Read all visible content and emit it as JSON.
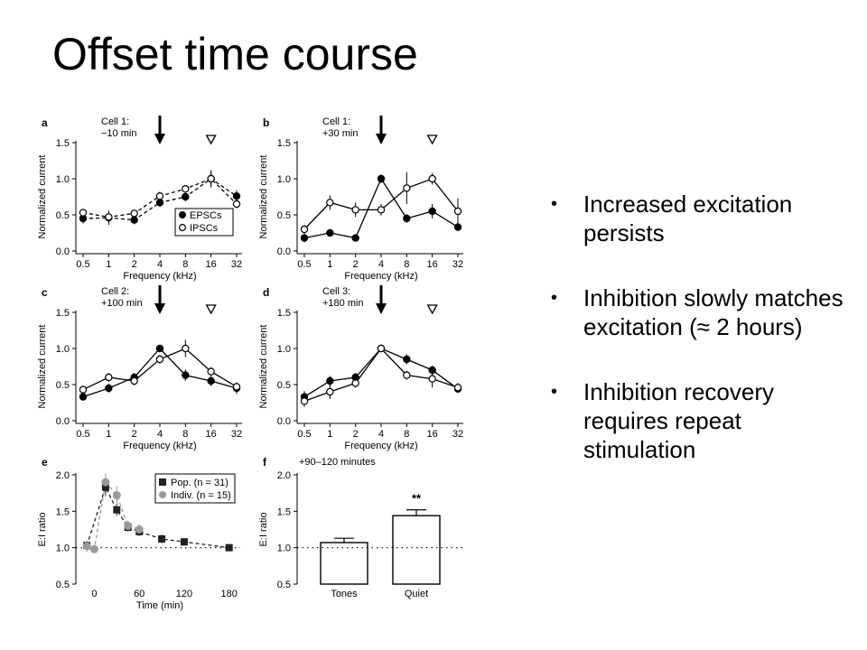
{
  "slide": {
    "title": "Offset time course",
    "bullets": [
      "Increased excitation persists",
      "Inhibition slowly matches excitation (≈ 2 hours)",
      "Inhibition recovery requires repeat stimulation"
    ],
    "bullet_glyph": "•"
  },
  "chart_data": [
    {
      "type": "line",
      "panel": "a",
      "annotation": "Cell 1:\n−10 min",
      "xlabel": "Frequency (kHz)",
      "ylabel": "Normalized current",
      "categories": [
        "0.5",
        "1",
        "2",
        "4",
        "8",
        "16",
        "32"
      ],
      "ylim": [
        0,
        1.5
      ],
      "yticks": [
        "0.0",
        "0.5",
        "1.0",
        "1.5"
      ],
      "legend": "bottom-right",
      "line_style": "dashed",
      "arrow_at": "4",
      "triangle_at": "16",
      "series": [
        {
          "name": "EPSCs",
          "marker": "filled",
          "values": [
            0.45,
            0.46,
            0.43,
            0.67,
            0.75,
            1.0,
            0.76
          ],
          "err": [
            0.07,
            0.1,
            0.06,
            0.06,
            0.06,
            0.12,
            0.08
          ]
        },
        {
          "name": "IPSCs",
          "marker": "open",
          "values": [
            0.53,
            0.47,
            0.52,
            0.76,
            0.86,
            1.0,
            0.65
          ],
          "err": [
            0.05,
            0.05,
            0.05,
            0.06,
            0.05,
            0.1,
            0.06
          ]
        }
      ]
    },
    {
      "type": "line",
      "panel": "b",
      "annotation": "Cell 1:\n+30 min",
      "xlabel": "Frequency (kHz)",
      "ylabel": "Normalized current",
      "categories": [
        "0.5",
        "1",
        "2",
        "4",
        "8",
        "16",
        "32"
      ],
      "ylim": [
        0,
        1.5
      ],
      "yticks": [
        "0.0",
        "0.5",
        "1.0",
        "1.5"
      ],
      "line_style": "solid",
      "arrow_at": "4",
      "triangle_at": "16",
      "series": [
        {
          "marker": "filled",
          "values": [
            0.18,
            0.25,
            0.18,
            1.0,
            0.45,
            0.55,
            0.33
          ],
          "err": [
            0.06,
            0.05,
            0.04,
            0.06,
            0.06,
            0.1,
            0.05
          ]
        },
        {
          "marker": "open",
          "values": [
            0.3,
            0.67,
            0.57,
            0.57,
            0.87,
            1.0,
            0.55
          ],
          "err": [
            0.06,
            0.1,
            0.1,
            0.08,
            0.22,
            0.08,
            0.18
          ]
        }
      ]
    },
    {
      "type": "line",
      "panel": "c",
      "annotation": "Cell 2:\n+100 min",
      "xlabel": "Frequency (kHz)",
      "ylabel": "Normalized current",
      "categories": [
        "0.5",
        "1",
        "2",
        "4",
        "8",
        "16",
        "32"
      ],
      "ylim": [
        0,
        1.5
      ],
      "yticks": [
        "0.0",
        "0.5",
        "1.0",
        "1.5"
      ],
      "line_style": "solid",
      "arrow_at": "4",
      "triangle_at": "16",
      "series": [
        {
          "marker": "filled",
          "values": [
            0.33,
            0.45,
            0.6,
            1.0,
            0.63,
            0.55,
            0.45
          ],
          "err": [
            0.05,
            0.06,
            0.06,
            0.05,
            0.08,
            0.07,
            0.08
          ]
        },
        {
          "marker": "open",
          "values": [
            0.43,
            0.6,
            0.55,
            0.85,
            1.0,
            0.68,
            0.47
          ],
          "err": [
            0.05,
            0.06,
            0.06,
            0.06,
            0.12,
            0.06,
            0.06
          ]
        }
      ]
    },
    {
      "type": "line",
      "panel": "d",
      "annotation": "Cell 3:\n+180 min",
      "xlabel": "Frequency (kHz)",
      "ylabel": "Normalized current",
      "categories": [
        "0.5",
        "1",
        "2",
        "4",
        "8",
        "16",
        "32"
      ],
      "ylim": [
        0,
        1.5
      ],
      "yticks": [
        "0.0",
        "0.5",
        "1.0",
        "1.5"
      ],
      "line_style": "solid",
      "arrow_at": "4",
      "triangle_at": "16",
      "series": [
        {
          "marker": "filled",
          "values": [
            0.33,
            0.55,
            0.6,
            1.0,
            0.85,
            0.7,
            0.44
          ],
          "err": [
            0.08,
            0.07,
            0.06,
            0.05,
            0.07,
            0.06,
            0.05
          ]
        },
        {
          "marker": "open",
          "values": [
            0.27,
            0.4,
            0.52,
            1.0,
            0.63,
            0.58,
            0.46
          ],
          "err": [
            0.08,
            0.1,
            0.06,
            0.05,
            0.06,
            0.12,
            0.06
          ]
        }
      ]
    },
    {
      "type": "scatter",
      "panel": "e",
      "xlabel": "Time (min)",
      "ylabel": "E:I ratio",
      "xticks": [
        0,
        60,
        120,
        180
      ],
      "xlim": [
        -15,
        190
      ],
      "ylim": [
        0.5,
        2.0
      ],
      "yticks": [
        "0.5",
        "1.0",
        "1.5",
        "2.0"
      ],
      "reference_y": 1.0,
      "legend": "top-right",
      "series": [
        {
          "name": "Pop. (n = 31)",
          "marker": "square",
          "color": "#222222",
          "x": [
            -10,
            15,
            30,
            45,
            60,
            90,
            120,
            180
          ],
          "y": [
            1.03,
            1.83,
            1.52,
            1.28,
            1.22,
            1.12,
            1.08,
            1.0
          ],
          "err": [
            0.06,
            0.12,
            0.08,
            0.06,
            0.06,
            0.06,
            0.05,
            0.04
          ]
        },
        {
          "name": "Indiv. (n = 15)",
          "marker": "circle",
          "color": "#999999",
          "x": [
            -10,
            0,
            15,
            30,
            45,
            60
          ],
          "y": [
            1.02,
            0.98,
            1.9,
            1.72,
            1.3,
            1.25
          ],
          "err": [
            0.08,
            0.05,
            0.12,
            0.12,
            0.07,
            0.07
          ]
        }
      ]
    },
    {
      "type": "bar",
      "panel": "f",
      "annotation": "+90–120 minutes",
      "ylabel": "E:I ratio",
      "categories": [
        "Tones",
        "Quiet"
      ],
      "values": [
        1.07,
        1.44
      ],
      "err": [
        0.06,
        0.08
      ],
      "significance": [
        "",
        "**"
      ],
      "ylim": [
        0.5,
        2.0
      ],
      "yticks": [
        "0.5",
        "1.0",
        "1.5",
        "2.0"
      ],
      "reference_y": 1.0
    }
  ]
}
